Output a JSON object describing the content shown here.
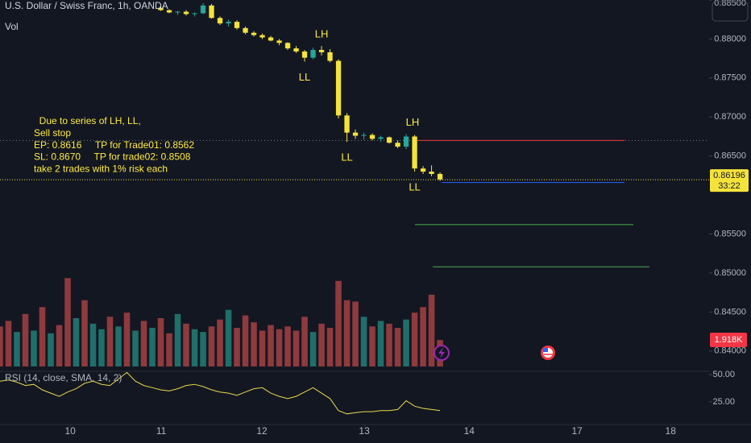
{
  "chart_data": {
    "type": "candlestick",
    "title": "U.S. Dollar / Swiss Franc, 1h, OANDA",
    "volume_title": "Vol",
    "rsi_title": "RSI (14, close, SMA, 14, 2)",
    "up_color": "#26a69a",
    "down_color": "#f5e33b",
    "xlim": [
      0,
      167.6
    ],
    "xticks": [
      {
        "value": 16.6,
        "label": "10"
      },
      {
        "value": 38.1,
        "label": "11"
      },
      {
        "value": 61.9,
        "label": "12"
      },
      {
        "value": 86.1,
        "label": "13"
      },
      {
        "value": 110.9,
        "label": "14"
      },
      {
        "value": 136.4,
        "label": "17"
      },
      {
        "value": 158.5,
        "label": "18"
      }
    ],
    "ylim": [
      0.8375,
      0.885
    ],
    "yticks": [
      {
        "value": 0.885,
        "label": "0.88500"
      },
      {
        "value": 0.88,
        "label": "0.88000"
      },
      {
        "value": 0.875,
        "label": "0.87500"
      },
      {
        "value": 0.87,
        "label": "0.87000"
      },
      {
        "value": 0.865,
        "label": "0.86500"
      },
      {
        "value": 0.855,
        "label": "0.85500"
      },
      {
        "value": 0.85,
        "label": "0.85000"
      },
      {
        "value": 0.845,
        "label": "0.84500"
      },
      {
        "value": 0.84,
        "label": "0.84000"
      }
    ],
    "x": [
      38,
      40,
      42,
      44,
      46,
      48,
      50,
      52,
      54,
      56,
      58,
      60,
      62,
      64,
      66,
      68,
      70,
      72,
      74,
      76,
      78,
      80,
      82,
      84,
      86,
      88,
      90,
      92,
      94,
      96,
      98,
      100,
      102,
      104
    ],
    "open": [
      0.884,
      0.8837,
      0.8834,
      0.8835,
      0.8832,
      0.8833,
      0.8843,
      0.8827,
      0.882,
      0.8822,
      0.8814,
      0.8808,
      0.8805,
      0.8802,
      0.8798,
      0.8795,
      0.8788,
      0.8784,
      0.8776,
      0.8786,
      0.8783,
      0.8772,
      0.8702,
      0.868,
      0.8676,
      0.8677,
      0.8672,
      0.8674,
      0.8667,
      0.8662,
      0.8675,
      0.8634,
      0.863,
      0.8627
    ],
    "high": [
      0.8843,
      0.8838,
      0.8836,
      0.8837,
      0.8834,
      0.8846,
      0.8845,
      0.8829,
      0.8825,
      0.8824,
      0.8816,
      0.881,
      0.8807,
      0.8804,
      0.88,
      0.8796,
      0.8791,
      0.8786,
      0.8789,
      0.8791,
      0.8787,
      0.8774,
      0.8705,
      0.8684,
      0.868,
      0.8679,
      0.8676,
      0.8675,
      0.867,
      0.8678,
      0.8677,
      0.8637,
      0.8638,
      0.8629
    ],
    "low": [
      0.8836,
      0.8833,
      0.8831,
      0.883,
      0.8829,
      0.8832,
      0.8826,
      0.8818,
      0.8816,
      0.8812,
      0.8806,
      0.8803,
      0.88,
      0.8797,
      0.8792,
      0.8786,
      0.8782,
      0.8771,
      0.8774,
      0.8779,
      0.877,
      0.8698,
      0.8668,
      0.8672,
      0.8671,
      0.867,
      0.8668,
      0.8666,
      0.866,
      0.8659,
      0.863,
      0.8627,
      0.8624,
      0.8618
    ],
    "close": [
      0.8837,
      0.8834,
      0.8835,
      0.8832,
      0.8833,
      0.8843,
      0.8827,
      0.882,
      0.8822,
      0.8814,
      0.8808,
      0.8805,
      0.8802,
      0.8798,
      0.8795,
      0.8788,
      0.8784,
      0.8776,
      0.8786,
      0.8783,
      0.8772,
      0.8702,
      0.868,
      0.8676,
      0.8677,
      0.8672,
      0.8674,
      0.8667,
      0.8662,
      0.8675,
      0.8634,
      0.863,
      0.8627,
      0.862
    ],
    "current_price": 0.86196,
    "current_price_label": "0.86196",
    "countdown": "33:22",
    "volume": {
      "x": [
        0,
        2,
        4,
        6,
        8,
        10,
        12,
        14,
        16,
        18,
        20,
        22,
        24,
        26,
        28,
        30,
        32,
        34,
        36,
        38,
        40,
        42,
        44,
        46,
        48,
        50,
        52,
        54,
        56,
        58,
        60,
        62,
        64,
        66,
        68,
        70,
        72,
        74,
        76,
        78,
        80,
        82,
        84,
        86,
        88,
        90,
        92,
        94,
        96,
        98,
        100,
        102,
        104
      ],
      "values": [
        2900,
        3300,
        2500,
        3800,
        2600,
        4300,
        2400,
        3000,
        6400,
        3500,
        4800,
        3100,
        2700,
        3600,
        2900,
        3900,
        2600,
        3300,
        2800,
        3500,
        2400,
        3800,
        3100,
        2700,
        2500,
        2900,
        3400,
        4100,
        2800,
        3700,
        3200,
        2600,
        3000,
        2700,
        2900,
        2600,
        3600,
        2500,
        3100,
        2800,
        6200,
        4800,
        4700,
        3600,
        2900,
        3300,
        3100,
        2800,
        3400,
        3900,
        4300,
        5200,
        1918
      ],
      "value_labels": [
        null,
        null,
        null,
        null,
        null,
        null,
        null,
        null,
        null,
        null,
        null,
        null,
        null,
        null,
        null,
        null,
        null,
        null,
        null,
        null,
        null,
        null,
        null,
        null,
        null,
        null,
        null,
        null,
        null,
        null,
        null,
        null,
        null,
        null,
        null,
        null,
        null,
        null,
        null,
        null,
        null,
        null,
        null,
        null,
        null,
        null,
        null,
        null,
        null,
        null,
        null,
        null,
        "1.918K"
      ],
      "ylim": [
        0,
        7000
      ],
      "up_color": "#1f6f6a",
      "down_color": "#8f3a3d"
    },
    "rsi": {
      "x": [
        0,
        2,
        4,
        6,
        8,
        10,
        12,
        14,
        16,
        18,
        20,
        22,
        24,
        26,
        28,
        30,
        32,
        34,
        36,
        38,
        40,
        42,
        44,
        46,
        48,
        50,
        52,
        54,
        56,
        58,
        60,
        62,
        64,
        66,
        68,
        70,
        72,
        74,
        76,
        78,
        80,
        82,
        84,
        86,
        88,
        90,
        92,
        94,
        96,
        98,
        100,
        102,
        104
      ],
      "values": [
        44,
        45,
        43,
        40,
        41,
        36,
        33,
        30,
        34,
        37,
        42,
        44,
        41,
        40,
        46,
        52,
        44,
        40,
        38,
        36,
        35,
        37,
        40,
        41,
        39,
        36,
        34,
        33,
        31,
        34,
        37,
        38,
        33,
        30,
        28,
        30,
        34,
        38,
        33,
        28,
        17,
        14,
        15,
        16,
        16,
        17,
        17,
        18,
        26,
        21,
        19,
        18,
        17
      ],
      "color": "#e8d84a",
      "ylim": [
        2,
        53
      ],
      "yticks": [
        {
          "value": 50,
          "label": "50.00"
        },
        {
          "value": 25,
          "label": "25.00"
        }
      ]
    },
    "note": [
      "  Due to series of LH, LL,",
      "Sell stop",
      "EP: 0.8616     TP for Trade01: 0.8562",
      "SL: 0.8670     TP for trade02: 0.8508",
      "take 2 trades with 1% risk each"
    ],
    "pivots": [
      {
        "label": "LH",
        "x": 76,
        "price": 0.8791
      },
      {
        "label": "LL",
        "x": 72,
        "price": 0.8771
      },
      {
        "label": "LL",
        "x": 82,
        "price": 0.8668
      },
      {
        "label": "LH",
        "x": 97.5,
        "price": 0.8678
      },
      {
        "label": "LL",
        "x": 98,
        "price": 0.863
      }
    ],
    "trade_lines": [
      {
        "value": 0.867,
        "x": [
          97.5,
          147.6
        ],
        "color": "#f23645"
      },
      {
        "value": 0.8616,
        "x": [
          104.4,
          147.6
        ],
        "color": "#2962ff"
      },
      {
        "value": 0.8562,
        "x": [
          98.1,
          149.7
        ],
        "color": "#4caf50"
      },
      {
        "value": 0.8508,
        "x": [
          102.3,
          153.5
        ],
        "color": "#4caf50"
      }
    ],
    "dotted_lines": [
      {
        "value": 0.867,
        "color": "#787b86"
      }
    ]
  }
}
